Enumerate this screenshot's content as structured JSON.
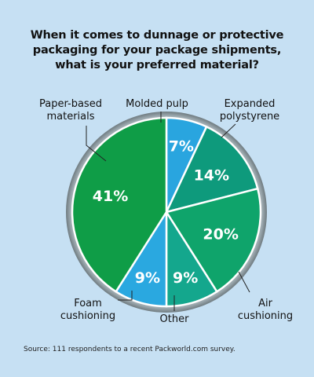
{
  "chart_data": {
    "type": "pie",
    "title": "When it comes to dunnage or protective\npackaging for your package shipments,\nwhat is your preferred material?",
    "slices": [
      {
        "label": "Molded pulp",
        "value": 7,
        "value_label": "7%",
        "color": "#29a5df"
      },
      {
        "label": "Expanded polystyrene",
        "value": 14,
        "value_label": "14%",
        "color": "#0e9a7c"
      },
      {
        "label": "Air cushioning",
        "value": 20,
        "value_label": "20%",
        "color": "#0fa46b"
      },
      {
        "label": "Other",
        "value": 9,
        "value_label": "9%",
        "color": "#14a78d"
      },
      {
        "label": "Foam cushioning",
        "value": 9,
        "value_label": "9%",
        "color": "#2aa8e0"
      },
      {
        "label": "Paper-based materials",
        "value": 41,
        "value_label": "41%",
        "color": "#0f9d47"
      }
    ],
    "callouts": {
      "paper": [
        "Paper-based",
        "materials"
      ],
      "molded": [
        "Molded pulp"
      ],
      "eps": [
        "Expanded",
        "polystyrene"
      ],
      "air": [
        "Air",
        "cushioning"
      ],
      "other": [
        "Other"
      ],
      "foam": [
        "Foam",
        "cushioning"
      ]
    }
  },
  "source": "Source: 111 respondents to a recent Packworld.com survey."
}
